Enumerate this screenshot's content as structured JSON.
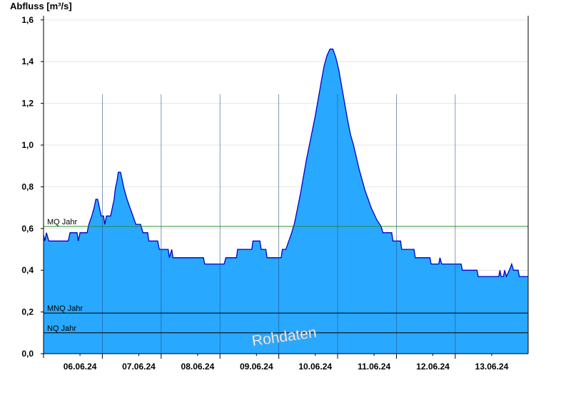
{
  "chart_data": {
    "type": "area",
    "ylabel": "Abfluss [m³/s]",
    "ylim": [
      0,
      1.62
    ],
    "y_ticks": [
      "0,0",
      "0,2",
      "0,4",
      "0,6",
      "0,8",
      "1,0",
      "1,2",
      "1,4",
      "1,6"
    ],
    "y_tick_values": [
      0,
      0.2,
      0.4,
      0.6,
      0.8,
      1.0,
      1.2,
      1.4,
      1.6
    ],
    "x_unit": "days since 06.06.24 00:00",
    "xlim": [
      -0.62,
      7.62
    ],
    "x_ticks": [
      "06.06.24",
      "07.06.24",
      "08.06.24",
      "09.06.24",
      "10.06.24",
      "11.06.24",
      "12.06.24",
      "13.06.24"
    ],
    "day_boundaries": [
      0.38,
      1.38,
      2.38,
      3.38,
      4.38,
      5.38,
      6.38
    ],
    "grid": true,
    "reference_lines": [
      {
        "label": "MQ Jahr",
        "value": 0.61,
        "color": "#2e8b2e"
      },
      {
        "label": "MNQ Jahr",
        "value": 0.195,
        "color": "#000000"
      },
      {
        "label": "NQ Jahr",
        "value": 0.1,
        "color": "#000000"
      }
    ],
    "watermark": "Rohdaten",
    "series": [
      {
        "color": "#29a8ff",
        "line_color": "#0000cc",
        "points": [
          [
            -0.62,
            0.57
          ],
          [
            -0.6,
            0.54
          ],
          [
            -0.57,
            0.58
          ],
          [
            -0.53,
            0.54
          ],
          [
            -0.2,
            0.54
          ],
          [
            -0.17,
            0.58
          ],
          [
            -0.05,
            0.58
          ],
          [
            -0.03,
            0.54
          ],
          [
            0.0,
            0.58
          ],
          [
            0.12,
            0.58
          ],
          [
            0.15,
            0.62
          ],
          [
            0.2,
            0.66
          ],
          [
            0.24,
            0.7
          ],
          [
            0.27,
            0.74
          ],
          [
            0.3,
            0.74
          ],
          [
            0.33,
            0.7
          ],
          [
            0.36,
            0.66
          ],
          [
            0.4,
            0.66
          ],
          [
            0.42,
            0.62
          ],
          [
            0.45,
            0.66
          ],
          [
            0.52,
            0.66
          ],
          [
            0.55,
            0.7
          ],
          [
            0.58,
            0.74
          ],
          [
            0.6,
            0.79
          ],
          [
            0.63,
            0.83
          ],
          [
            0.65,
            0.87
          ],
          [
            0.69,
            0.87
          ],
          [
            0.72,
            0.83
          ],
          [
            0.75,
            0.79
          ],
          [
            0.8,
            0.74
          ],
          [
            0.85,
            0.7
          ],
          [
            0.9,
            0.66
          ],
          [
            0.95,
            0.62
          ],
          [
            1.03,
            0.62
          ],
          [
            1.07,
            0.58
          ],
          [
            1.15,
            0.58
          ],
          [
            1.17,
            0.54
          ],
          [
            1.32,
            0.54
          ],
          [
            1.35,
            0.5
          ],
          [
            1.5,
            0.5
          ],
          [
            1.52,
            0.46
          ],
          [
            1.56,
            0.5
          ],
          [
            1.58,
            0.46
          ],
          [
            2.1,
            0.46
          ],
          [
            2.12,
            0.43
          ],
          [
            2.45,
            0.43
          ],
          [
            2.48,
            0.46
          ],
          [
            2.66,
            0.46
          ],
          [
            2.68,
            0.5
          ],
          [
            2.92,
            0.5
          ],
          [
            2.94,
            0.54
          ],
          [
            3.06,
            0.54
          ],
          [
            3.08,
            0.5
          ],
          [
            3.16,
            0.5
          ],
          [
            3.18,
            0.46
          ],
          [
            3.42,
            0.46
          ],
          [
            3.44,
            0.5
          ],
          [
            3.5,
            0.5
          ],
          [
            3.55,
            0.54
          ],
          [
            3.6,
            0.58
          ],
          [
            3.65,
            0.63
          ],
          [
            3.7,
            0.7
          ],
          [
            3.75,
            0.77
          ],
          [
            3.8,
            0.85
          ],
          [
            3.85,
            0.93
          ],
          [
            3.9,
            1.0
          ],
          [
            3.95,
            1.07
          ],
          [
            4.0,
            1.14
          ],
          [
            4.05,
            1.22
          ],
          [
            4.1,
            1.3
          ],
          [
            4.15,
            1.38
          ],
          [
            4.2,
            1.43
          ],
          [
            4.25,
            1.46
          ],
          [
            4.3,
            1.46
          ],
          [
            4.35,
            1.42
          ],
          [
            4.4,
            1.36
          ],
          [
            4.45,
            1.28
          ],
          [
            4.5,
            1.2
          ],
          [
            4.55,
            1.12
          ],
          [
            4.6,
            1.05
          ],
          [
            4.65,
            1.0
          ],
          [
            4.7,
            0.94
          ],
          [
            4.75,
            0.88
          ],
          [
            4.8,
            0.83
          ],
          [
            4.85,
            0.78
          ],
          [
            4.9,
            0.74
          ],
          [
            4.95,
            0.7
          ],
          [
            5.0,
            0.67
          ],
          [
            5.05,
            0.64
          ],
          [
            5.12,
            0.61
          ],
          [
            5.15,
            0.58
          ],
          [
            5.3,
            0.58
          ],
          [
            5.32,
            0.54
          ],
          [
            5.45,
            0.54
          ],
          [
            5.47,
            0.5
          ],
          [
            5.68,
            0.5
          ],
          [
            5.7,
            0.46
          ],
          [
            5.95,
            0.46
          ],
          [
            5.97,
            0.43
          ],
          [
            6.1,
            0.43
          ],
          [
            6.12,
            0.46
          ],
          [
            6.15,
            0.43
          ],
          [
            6.48,
            0.43
          ],
          [
            6.5,
            0.4
          ],
          [
            6.75,
            0.4
          ],
          [
            6.77,
            0.37
          ],
          [
            7.12,
            0.37
          ],
          [
            7.14,
            0.4
          ],
          [
            7.16,
            0.37
          ],
          [
            7.2,
            0.37
          ],
          [
            7.22,
            0.4
          ],
          [
            7.25,
            0.37
          ],
          [
            7.3,
            0.4
          ],
          [
            7.34,
            0.43
          ],
          [
            7.37,
            0.4
          ],
          [
            7.45,
            0.4
          ],
          [
            7.47,
            0.37
          ],
          [
            7.62,
            0.37
          ]
        ]
      }
    ]
  }
}
